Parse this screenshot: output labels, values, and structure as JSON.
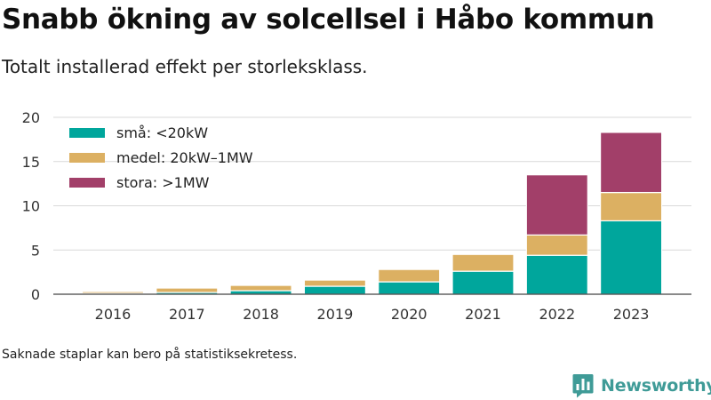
{
  "header": {
    "title": "Snabb ökning av solcellsel i Håbo kommun",
    "subtitle": "Totalt installerad effekt per storleksklass."
  },
  "footer": {
    "note": "Saknade staplar kan bero på statistiksekretess.",
    "brand": "Newsworthy",
    "brand_icon": "newsworthy-bar-chart-logo-icon",
    "brand_color": "#3f9b97"
  },
  "chart_data": {
    "type": "bar",
    "stacked": true,
    "title": "Snabb ökning av solcellsel i Håbo kommun",
    "subtitle": "Totalt installerad effekt per storleksklass.",
    "xlabel": "",
    "ylabel": "",
    "categories": [
      "2016",
      "2017",
      "2018",
      "2019",
      "2020",
      "2021",
      "2022",
      "2023"
    ],
    "series": [
      {
        "name": "små: <20kW",
        "color": "#00a69c",
        "values": [
          0.1,
          0.2,
          0.4,
          0.9,
          1.4,
          2.6,
          4.4,
          8.3
        ]
      },
      {
        "name": "medel: 20kW–1MW",
        "color": "#dcb062",
        "values": [
          0.2,
          0.5,
          0.6,
          0.7,
          1.4,
          1.9,
          2.3,
          3.2
        ]
      },
      {
        "name": "stora: >1MW",
        "color": "#a23f69",
        "values": [
          0,
          0,
          0,
          0,
          0,
          0,
          6.8,
          6.8
        ]
      }
    ],
    "ylim": [
      0,
      20
    ],
    "yticks": [
      0,
      5,
      10,
      15,
      20
    ],
    "grid": true,
    "legend_position": "top-left"
  }
}
